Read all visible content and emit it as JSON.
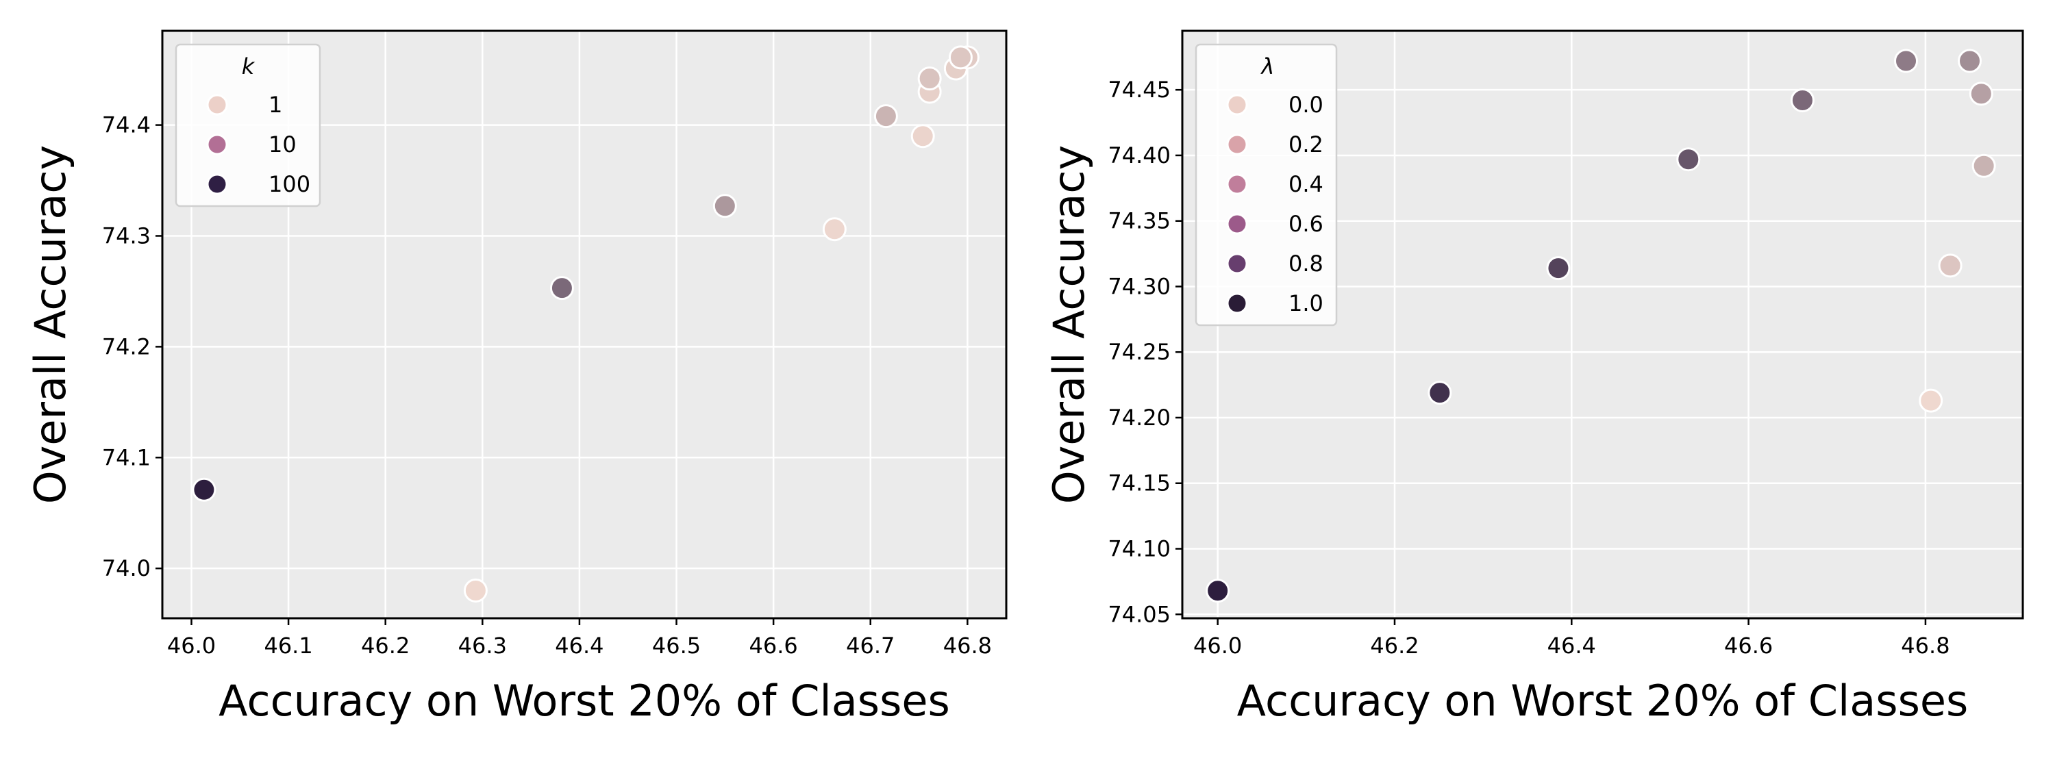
{
  "chart_data": [
    {
      "type": "scatter",
      "title": "",
      "xlabel": "Accuracy on Worst 20% of Classes",
      "ylabel": "Overall Accuracy",
      "xlim": [
        45.97,
        46.84
      ],
      "ylim": [
        73.955,
        74.485
      ],
      "xticks": [
        46.0,
        46.1,
        46.2,
        46.3,
        46.4,
        46.5,
        46.6,
        46.7,
        46.8
      ],
      "xtick_labels": [
        "46.0",
        "46.1",
        "46.2",
        "46.3",
        "46.4",
        "46.5",
        "46.6",
        "46.7",
        "46.8"
      ],
      "yticks": [
        74.0,
        74.1,
        74.2,
        74.3,
        74.4
      ],
      "ytick_labels": [
        "74.0",
        "74.1",
        "74.2",
        "74.3",
        "74.4"
      ],
      "grid": true,
      "legend": {
        "title": "k",
        "position": "top-left",
        "entries": [
          {
            "label": "1",
            "color": "#ecd0c8"
          },
          {
            "label": "10",
            "color": "#b26f95"
          },
          {
            "label": "100",
            "color": "#2f1f44"
          }
        ]
      },
      "color_scale": {
        "min_color": "#efd8cf",
        "max_color": "#2d1e3e",
        "min_value": 1,
        "max_value": 100
      },
      "points": [
        {
          "x": 46.293,
          "y": 73.98,
          "hue": 1
        },
        {
          "x": 46.663,
          "y": 74.306,
          "hue": 2
        },
        {
          "x": 46.754,
          "y": 74.39,
          "hue": 3
        },
        {
          "x": 46.761,
          "y": 74.43,
          "hue": 5
        },
        {
          "x": 46.788,
          "y": 74.451,
          "hue": 6
        },
        {
          "x": 46.8,
          "y": 74.461,
          "hue": 8
        },
        {
          "x": 46.793,
          "y": 74.461,
          "hue": 10
        },
        {
          "x": 46.761,
          "y": 74.442,
          "hue": 12
        },
        {
          "x": 46.716,
          "y": 74.408,
          "hue": 20
        },
        {
          "x": 46.55,
          "y": 74.327,
          "hue": 35
        },
        {
          "x": 46.382,
          "y": 74.253,
          "hue": 60
        },
        {
          "x": 46.013,
          "y": 74.071,
          "hue": 100
        }
      ]
    },
    {
      "type": "scatter",
      "title": "",
      "xlabel": "Accuracy on Worst 20% of Classes",
      "ylabel": "Overall Accuracy",
      "xlim": [
        45.96,
        46.91
      ],
      "ylim": [
        74.047,
        74.495
      ],
      "xticks": [
        46.0,
        46.2,
        46.4,
        46.6,
        46.8
      ],
      "xtick_labels": [
        "46.0",
        "46.2",
        "46.4",
        "46.6",
        "46.8"
      ],
      "yticks": [
        74.05,
        74.1,
        74.15,
        74.2,
        74.25,
        74.3,
        74.35,
        74.4,
        74.45
      ],
      "ytick_labels": [
        "74.05",
        "74.10",
        "74.15",
        "74.20",
        "74.25",
        "74.30",
        "74.35",
        "74.40",
        "74.45"
      ],
      "grid": true,
      "legend": {
        "title": "λ",
        "position": "top-left",
        "entries": [
          {
            "label": "0.0",
            "color": "#ecd0c8"
          },
          {
            "label": "0.2",
            "color": "#d9a3a9"
          },
          {
            "label": "0.4",
            "color": "#c07e9b"
          },
          {
            "label": "0.6",
            "color": "#9c5a8a"
          },
          {
            "label": "0.8",
            "color": "#673e6e"
          },
          {
            "label": "1.0",
            "color": "#2a1c36"
          }
        ]
      },
      "color_scale": {
        "min_color": "#efd8cf",
        "max_color": "#2d1e3e",
        "min_value": 0.0,
        "max_value": 1.0
      },
      "points": [
        {
          "x": 46.806,
          "y": 74.213,
          "hue": 0.0
        },
        {
          "x": 46.828,
          "y": 74.316,
          "hue": 0.1
        },
        {
          "x": 46.866,
          "y": 74.392,
          "hue": 0.2
        },
        {
          "x": 46.863,
          "y": 74.447,
          "hue": 0.3
        },
        {
          "x": 46.85,
          "y": 74.472,
          "hue": 0.4
        },
        {
          "x": 46.778,
          "y": 74.472,
          "hue": 0.5
        },
        {
          "x": 46.661,
          "y": 74.442,
          "hue": 0.6
        },
        {
          "x": 46.532,
          "y": 74.397,
          "hue": 0.7
        },
        {
          "x": 46.385,
          "y": 74.314,
          "hue": 0.8
        },
        {
          "x": 46.251,
          "y": 74.219,
          "hue": 0.9
        },
        {
          "x": 46.0,
          "y": 74.068,
          "hue": 1.0
        }
      ]
    }
  ]
}
